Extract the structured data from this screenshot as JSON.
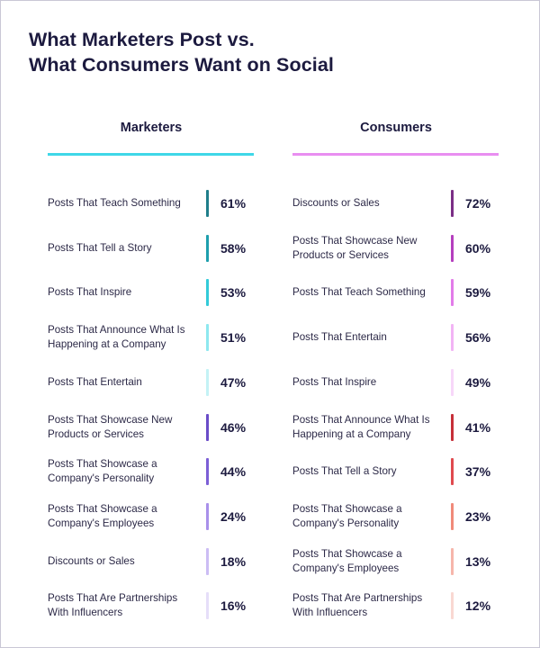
{
  "title_lines": [
    "What Marketers Post vs.",
    "What Consumers Want on Social"
  ],
  "colors": {
    "marketers_rule": "#3fd7e8",
    "consumers_rule": "#e98ef1"
  },
  "chart_data": [
    {
      "type": "table",
      "title": "Marketers",
      "categories": [
        "Posts That Teach Something",
        "Posts That Tell a Story",
        "Posts That Inspire",
        "Posts That Announce What Is Happening at a Company",
        "Posts That Entertain",
        "Posts That Showcase New Products or Services",
        "Posts That Showcase a Company's Personality",
        "Posts That Showcase a Company's Employees",
        "Discounts or Sales",
        "Posts That Are Partnerships With Influencers"
      ],
      "label_lines": [
        [
          "Posts That Teach Something"
        ],
        [
          "Posts That Tell a Story"
        ],
        [
          "Posts That Inspire"
        ],
        [
          "Posts That Announce What Is",
          "Happening at a Company"
        ],
        [
          "Posts That Entertain"
        ],
        [
          "Posts That Showcase New",
          "Products or Services"
        ],
        [
          "Posts That Showcase a",
          "Company's Personality"
        ],
        [
          "Posts That Showcase a",
          "Company's Employees"
        ],
        [
          "Discounts or Sales"
        ],
        [
          "Posts That Are Partnerships",
          "With Influencers"
        ]
      ],
      "values": [
        61,
        58,
        53,
        51,
        47,
        46,
        44,
        24,
        18,
        16
      ],
      "value_labels": [
        "61%",
        "58%",
        "53%",
        "51%",
        "47%",
        "46%",
        "44%",
        "24%",
        "18%",
        "16%"
      ],
      "bar_colors": [
        "#1f7e8a",
        "#1e9fad",
        "#33cbd9",
        "#8ee8ef",
        "#c4f2f5",
        "#6a4cc8",
        "#7c5fd6",
        "#a990ea",
        "#ccbdf4",
        "#e6def9"
      ]
    },
    {
      "type": "table",
      "title": "Consumers",
      "categories": [
        "Discounts or Sales",
        "Posts That Showcase New Products or Services",
        "Posts That Teach Something",
        "Posts That Entertain",
        "Posts That Inspire",
        "Posts That Announce What Is Happening at a Company",
        "Posts That Tell a Story",
        "Posts That Showcase a Company's Personality",
        "Posts That Showcase a Company's Employees",
        "Posts That Are Partnerships With Influencers"
      ],
      "label_lines": [
        [
          "Discounts or Sales"
        ],
        [
          "Posts That Showcase New",
          "Products or Services"
        ],
        [
          "Posts That Teach Something"
        ],
        [
          "Posts That Entertain"
        ],
        [
          "Posts That Inspire"
        ],
        [
          "Posts That Announce What Is",
          "Happening at a Company"
        ],
        [
          "Posts That Tell a Story"
        ],
        [
          "Posts That Showcase a",
          "Company's Personality"
        ],
        [
          "Posts That Showcase a",
          "Company's Employees"
        ],
        [
          "Posts That Are Partnerships",
          "With Influencers"
        ]
      ],
      "values": [
        72,
        60,
        59,
        56,
        49,
        41,
        37,
        23,
        13,
        12
      ],
      "value_labels": [
        "72%",
        "60%",
        "59%",
        "56%",
        "49%",
        "41%",
        "37%",
        "23%",
        "13%",
        "12%"
      ],
      "bar_colors": [
        "#7b2e86",
        "#b53fbe",
        "#e27ce9",
        "#f2b4f5",
        "#f7d7f9",
        "#c62f39",
        "#e04a4f",
        "#f08a7a",
        "#f6b6ab",
        "#f9d8d2"
      ]
    }
  ]
}
